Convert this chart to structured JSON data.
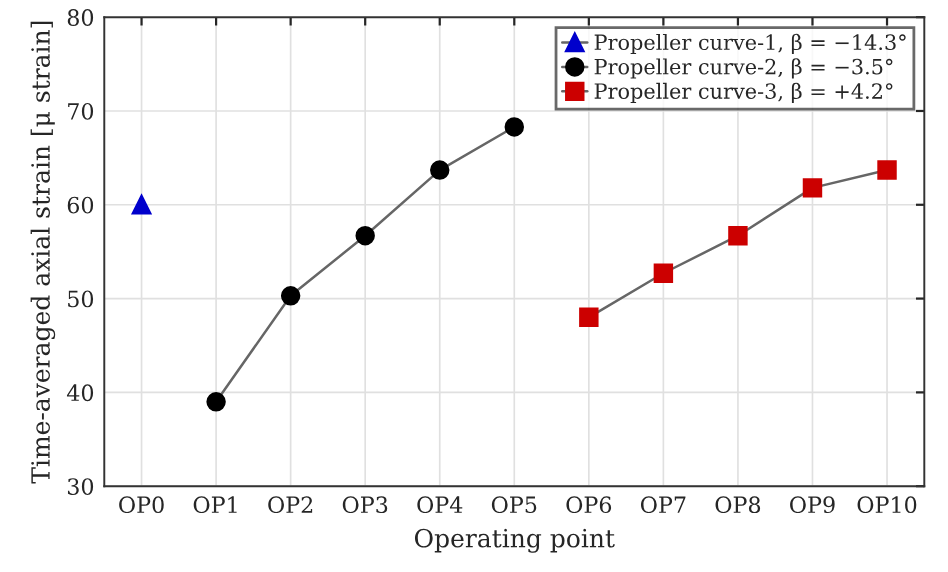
{
  "chart_data": {
    "type": "line",
    "xlabel": "Operating point",
    "ylabel": "Time-averaged axial strain [μ strain]",
    "categories": [
      "OP0",
      "OP1",
      "OP2",
      "OP3",
      "OP4",
      "OP5",
      "OP6",
      "OP7",
      "OP8",
      "OP9",
      "OP10"
    ],
    "series": [
      {
        "name": "Propeller curve-1, β = −14.3°",
        "color": "#0000cc",
        "marker": "triangle",
        "values": [
          60,
          null,
          null,
          null,
          null,
          null,
          null,
          null,
          null,
          null,
          null
        ]
      },
      {
        "name": "Propeller curve-2, β = −3.5°",
        "color": "#000000",
        "marker": "circle",
        "values": [
          null,
          39,
          50.3,
          56.7,
          63.7,
          68.3,
          null,
          null,
          null,
          null,
          null
        ]
      },
      {
        "name": "Propeller curve-3, β = +4.2°",
        "color": "#cc0000",
        "marker": "square",
        "values": [
          null,
          null,
          null,
          null,
          null,
          null,
          48,
          52.7,
          56.7,
          61.8,
          63.7
        ]
      }
    ],
    "ylim": [
      30,
      80
    ],
    "yticks": [
      30,
      40,
      50,
      60,
      70,
      80
    ],
    "grid": true,
    "legend": "top right"
  }
}
